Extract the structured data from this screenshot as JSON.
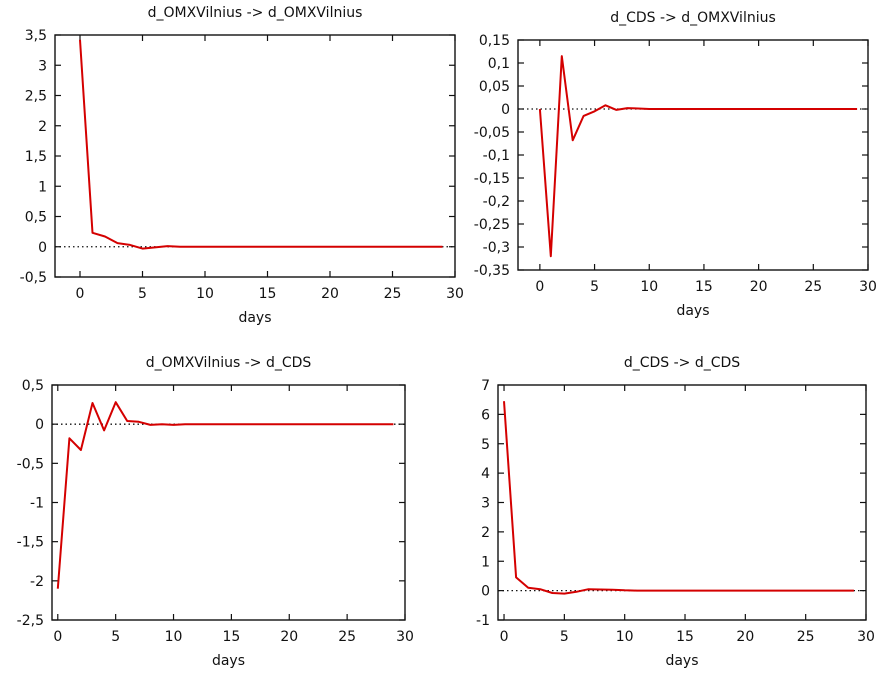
{
  "colors": {
    "line": "#d40000",
    "axis": "#111111",
    "background": "#ffffff"
  },
  "chart_data": [
    {
      "type": "line",
      "title": "d_OMXVilnius -> d_OMXVilnius",
      "xlabel": "days",
      "ylabel": "",
      "xlim": [
        -2,
        30
      ],
      "ylim": [
        -0.5,
        3.5
      ],
      "xticks": [
        0,
        5,
        10,
        15,
        20,
        25,
        30
      ],
      "xtick_labels": [
        "0",
        "5",
        "10",
        "15",
        "20",
        "25",
        "30"
      ],
      "yticks": [
        -0.5,
        0,
        0.5,
        1,
        1.5,
        2,
        2.5,
        3,
        3.5
      ],
      "ytick_labels": [
        "-0,5",
        "0",
        "0,5",
        "1",
        "1,5",
        "2",
        "2,5",
        "3",
        "3,5"
      ],
      "zero_line": true,
      "grid": false,
      "x": [
        0,
        1,
        2,
        3,
        4,
        5,
        6,
        7,
        8,
        9,
        10,
        11,
        12,
        13,
        14,
        15,
        16,
        17,
        18,
        19,
        20,
        21,
        22,
        23,
        24,
        25,
        26,
        27,
        28,
        29
      ],
      "values": [
        3.42,
        0.23,
        0.17,
        0.06,
        0.03,
        -0.03,
        -0.01,
        0.01,
        0.0,
        0.0,
        0.0,
        0.0,
        0.0,
        0.0,
        0.0,
        0.0,
        0.0,
        0.0,
        0.0,
        0.0,
        0.0,
        0.0,
        0.0,
        0.0,
        0.0,
        0.0,
        0.0,
        0.0,
        0.0,
        0.0
      ]
    },
    {
      "type": "line",
      "title": "d_CDS -> d_OMXVilnius",
      "xlabel": "days",
      "ylabel": "",
      "xlim": [
        -2,
        30
      ],
      "ylim": [
        -0.35,
        0.15
      ],
      "xticks": [
        0,
        5,
        10,
        15,
        20,
        25,
        30
      ],
      "xtick_labels": [
        "0",
        "5",
        "10",
        "15",
        "20",
        "25",
        "30"
      ],
      "yticks": [
        -0.35,
        -0.3,
        -0.25,
        -0.2,
        -0.15,
        -0.1,
        -0.05,
        0,
        0.05,
        0.1,
        0.15
      ],
      "ytick_labels": [
        "-0,35",
        "-0,3",
        "-0,25",
        "-0,2",
        "-0,15",
        "-0,1",
        "-0,05",
        "0",
        "0,05",
        "0,1",
        "0,15"
      ],
      "zero_line": true,
      "grid": false,
      "x": [
        0,
        1,
        2,
        3,
        4,
        5,
        6,
        7,
        8,
        9,
        10,
        11,
        12,
        13,
        14,
        15,
        16,
        17,
        18,
        19,
        20,
        21,
        22,
        23,
        24,
        25,
        26,
        27,
        28,
        29
      ],
      "values": [
        0.0,
        -0.32,
        0.115,
        -0.068,
        -0.015,
        -0.005,
        0.008,
        -0.002,
        0.002,
        0.001,
        0.0,
        0.0,
        0.0,
        0.0,
        0.0,
        0.0,
        0.0,
        0.0,
        0.0,
        0.0,
        0.0,
        0.0,
        0.0,
        0.0,
        0.0,
        0.0,
        0.0,
        0.0,
        0.0,
        0.0
      ]
    },
    {
      "type": "line",
      "title": "d_OMXVilnius -> d_CDS",
      "xlabel": "days",
      "ylabel": "",
      "xlim": [
        -0.5,
        30
      ],
      "ylim": [
        -2.5,
        0.5
      ],
      "xticks": [
        0,
        5,
        10,
        15,
        20,
        25,
        30
      ],
      "xtick_labels": [
        "0",
        "5",
        "10",
        "15",
        "20",
        "25",
        "30"
      ],
      "yticks": [
        -2.5,
        -2,
        -1.5,
        -1,
        -0.5,
        0,
        0.5
      ],
      "ytick_labels": [
        "-2,5",
        "-2",
        "-1,5",
        "-1",
        "-0,5",
        "0",
        "0,5"
      ],
      "zero_line": true,
      "grid": false,
      "x": [
        0,
        1,
        2,
        3,
        4,
        5,
        6,
        7,
        8,
        9,
        10,
        11,
        12,
        13,
        14,
        15,
        16,
        17,
        18,
        19,
        20,
        21,
        22,
        23,
        24,
        25,
        26,
        27,
        28,
        29
      ],
      "values": [
        -2.1,
        -0.18,
        -0.33,
        0.27,
        -0.08,
        0.28,
        0.04,
        0.03,
        -0.01,
        0.0,
        -0.01,
        0.0,
        0.0,
        0.0,
        0.0,
        0.0,
        0.0,
        0.0,
        0.0,
        0.0,
        0.0,
        0.0,
        0.0,
        0.0,
        0.0,
        0.0,
        0.0,
        0.0,
        0.0,
        0.0
      ]
    },
    {
      "type": "line",
      "title": "d_CDS -> d_CDS",
      "xlabel": "days",
      "ylabel": "",
      "xlim": [
        -0.5,
        30
      ],
      "ylim": [
        -1,
        7
      ],
      "xticks": [
        0,
        5,
        10,
        15,
        20,
        25,
        30
      ],
      "xtick_labels": [
        "0",
        "5",
        "10",
        "15",
        "20",
        "25",
        "30"
      ],
      "yticks": [
        -1,
        0,
        1,
        2,
        3,
        4,
        5,
        6,
        7
      ],
      "ytick_labels": [
        "-1",
        "0",
        "1",
        "2",
        "3",
        "4",
        "5",
        "6",
        "7"
      ],
      "zero_line": true,
      "grid": false,
      "x": [
        0,
        1,
        2,
        3,
        4,
        5,
        6,
        7,
        8,
        9,
        10,
        11,
        12,
        13,
        14,
        15,
        16,
        17,
        18,
        19,
        20,
        21,
        22,
        23,
        24,
        25,
        26,
        27,
        28,
        29
      ],
      "values": [
        6.45,
        0.45,
        0.1,
        0.05,
        -0.08,
        -0.1,
        -0.04,
        0.05,
        0.04,
        0.03,
        0.01,
        0.0,
        0.0,
        0.0,
        0.0,
        0.0,
        0.0,
        0.0,
        0.0,
        0.0,
        0.0,
        0.0,
        0.0,
        0.0,
        0.0,
        0.0,
        0.0,
        0.0,
        0.0,
        0.0
      ]
    }
  ]
}
